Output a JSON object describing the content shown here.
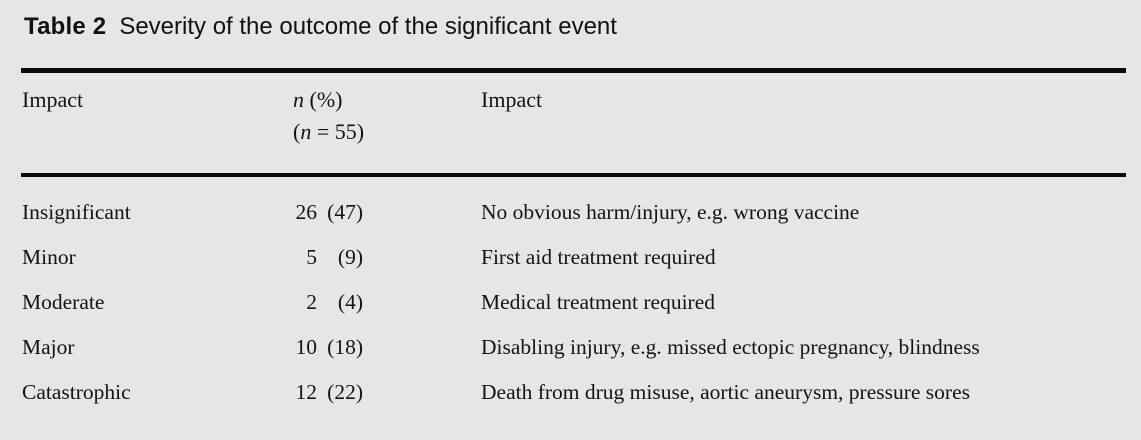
{
  "colors": {
    "background": "#e6e6e6",
    "text": "#141414",
    "rule": "#0a0a0a"
  },
  "caption": {
    "label": "Table 2",
    "text": "Severity of the outcome of the significant event"
  },
  "table": {
    "header": {
      "col_impact_left": "Impact",
      "col_n": {
        "line1_var": "n",
        "line1_rest": "(%)",
        "line2_open": "(",
        "line2_var": "n",
        "line2_rest": "= 55)"
      },
      "col_impact_right": "Impact"
    },
    "rows": [
      {
        "impact": "Insignificant",
        "count": "26",
        "pct": "(47)",
        "description": "No obvious harm/injury, e.g. wrong vaccine"
      },
      {
        "impact": "Minor",
        "count": "5",
        "pct": "(9)",
        "description": "First aid treatment required"
      },
      {
        "impact": "Moderate",
        "count": "2",
        "pct": "(4)",
        "description": "Medical treatment required"
      },
      {
        "impact": "Major",
        "count": "10",
        "pct": "(18)",
        "description": "Disabling injury, e.g. missed ectopic pregnancy, blindness"
      },
      {
        "impact": "Catastrophic",
        "count": "12",
        "pct": "(22)",
        "description": "Death from drug misuse, aortic aneurysm, pressure sores"
      }
    ]
  }
}
